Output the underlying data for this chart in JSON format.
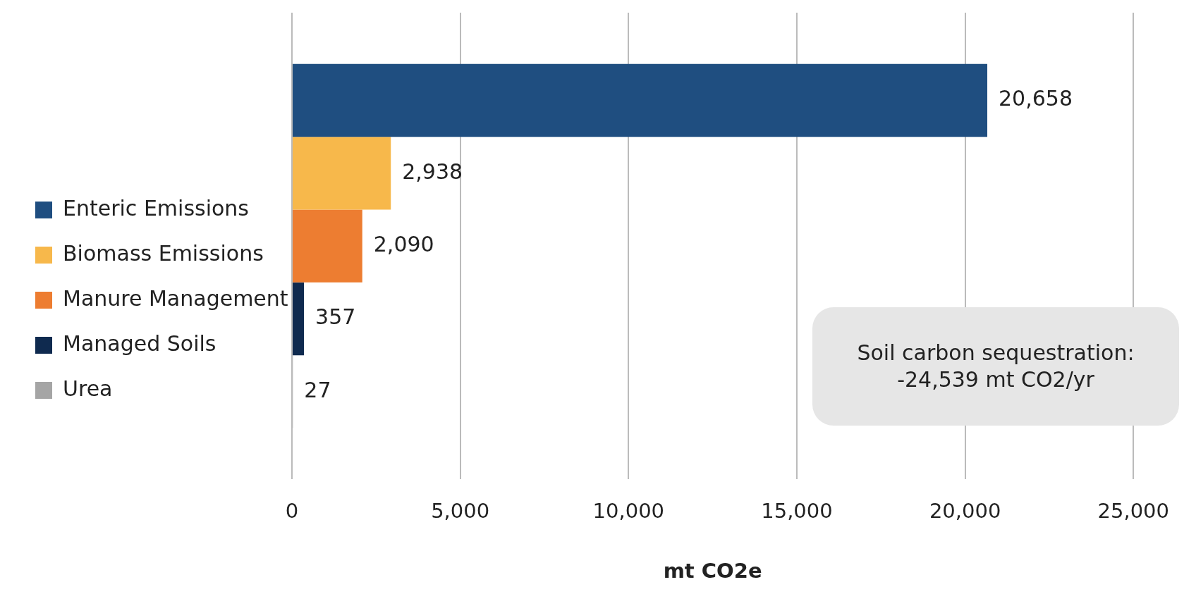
{
  "chart_data": {
    "type": "bar",
    "orientation": "horizontal",
    "xlabel": "mt CO2e",
    "categories": [
      null
    ],
    "series": [
      {
        "name": "Enteric Emissions",
        "color": "#1f4e80",
        "values": [
          20658
        ],
        "value_labels": [
          "20,658"
        ]
      },
      {
        "name": "Biomass Emissions",
        "color": "#f7b84b",
        "values": [
          2938
        ],
        "value_labels": [
          "2,938"
        ]
      },
      {
        "name": "Manure Management",
        "color": "#ed7d31",
        "values": [
          2090
        ],
        "value_labels": [
          "2,090"
        ]
      },
      {
        "name": "Managed Soils",
        "color": "#0f2a4f",
        "values": [
          357
        ],
        "value_labels": [
          "357"
        ]
      },
      {
        "name": "Urea",
        "color": "#a5a5a5",
        "values": [
          27
        ],
        "value_labels": [
          "27"
        ]
      }
    ],
    "xlim": [
      0,
      25000
    ],
    "xticks": [
      0,
      {
        "value": 5000,
        "label": "5,000"
      },
      {
        "value": 10000,
        "label": "10,000"
      },
      {
        "value": 15000,
        "label": "15,000"
      },
      {
        "value": 20000,
        "label": "20,000"
      },
      {
        "value": 25000,
        "label": "25,000"
      }
    ],
    "grid": "x",
    "legend": "left",
    "annotations": [
      "Soil carbon sequestration: -24,539 mt CO2/yr"
    ]
  }
}
